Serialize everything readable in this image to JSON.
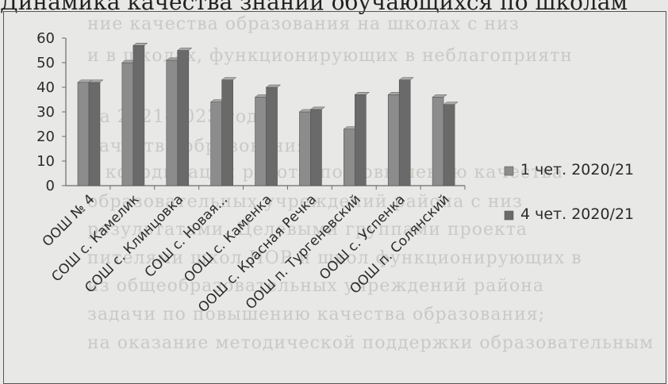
{
  "page": {
    "heading": "Динамика качества знаний обучающихся по школам",
    "background_lines": [
      "ние качества образования на школах с низ",
      "и в школах, функционирующих в неблагоприятн",
      "на 2021-2023 годы;",
      "качества образования",
      "к координации работы по повышению качества",
      "образовательных учреждений района с низ",
      "результатами. Целевыми группами проекта",
      "пителями школ НОР и школ функционирующих в",
      "из общеобразовательных учреждений района",
      "задачи по повышению качества образования;",
      "на оказание методической поддержки образовательным"
    ]
  },
  "chart_data": {
    "type": "bar",
    "categories": [
      "ООШ № 4",
      "СОШ с. Камелик",
      "СОШ с. Клинцовка",
      "СОШ с. Новая...",
      "ООШ с. Каменка",
      "ООШ с. Красная Речка",
      "ООШ п. Тургеневский",
      "ООШ с. Успенка",
      "ООШ п. Солянский"
    ],
    "series": [
      {
        "name": "1 чет. 2020/21",
        "values": [
          42,
          50,
          51,
          34,
          36,
          30,
          23,
          37,
          36
        ],
        "color": "#8c8c8c"
      },
      {
        "name": "4 чет. 2020/21",
        "values": [
          42,
          57,
          55,
          43,
          40,
          31,
          37,
          43,
          33
        ],
        "color": "#6a6a6a"
      }
    ],
    "ylim": [
      0,
      60
    ],
    "yticks": [
      0,
      10,
      20,
      30,
      40,
      50,
      60
    ],
    "title": "",
    "xlabel": "",
    "ylabel": "",
    "grid": false,
    "legend_position": "right"
  }
}
